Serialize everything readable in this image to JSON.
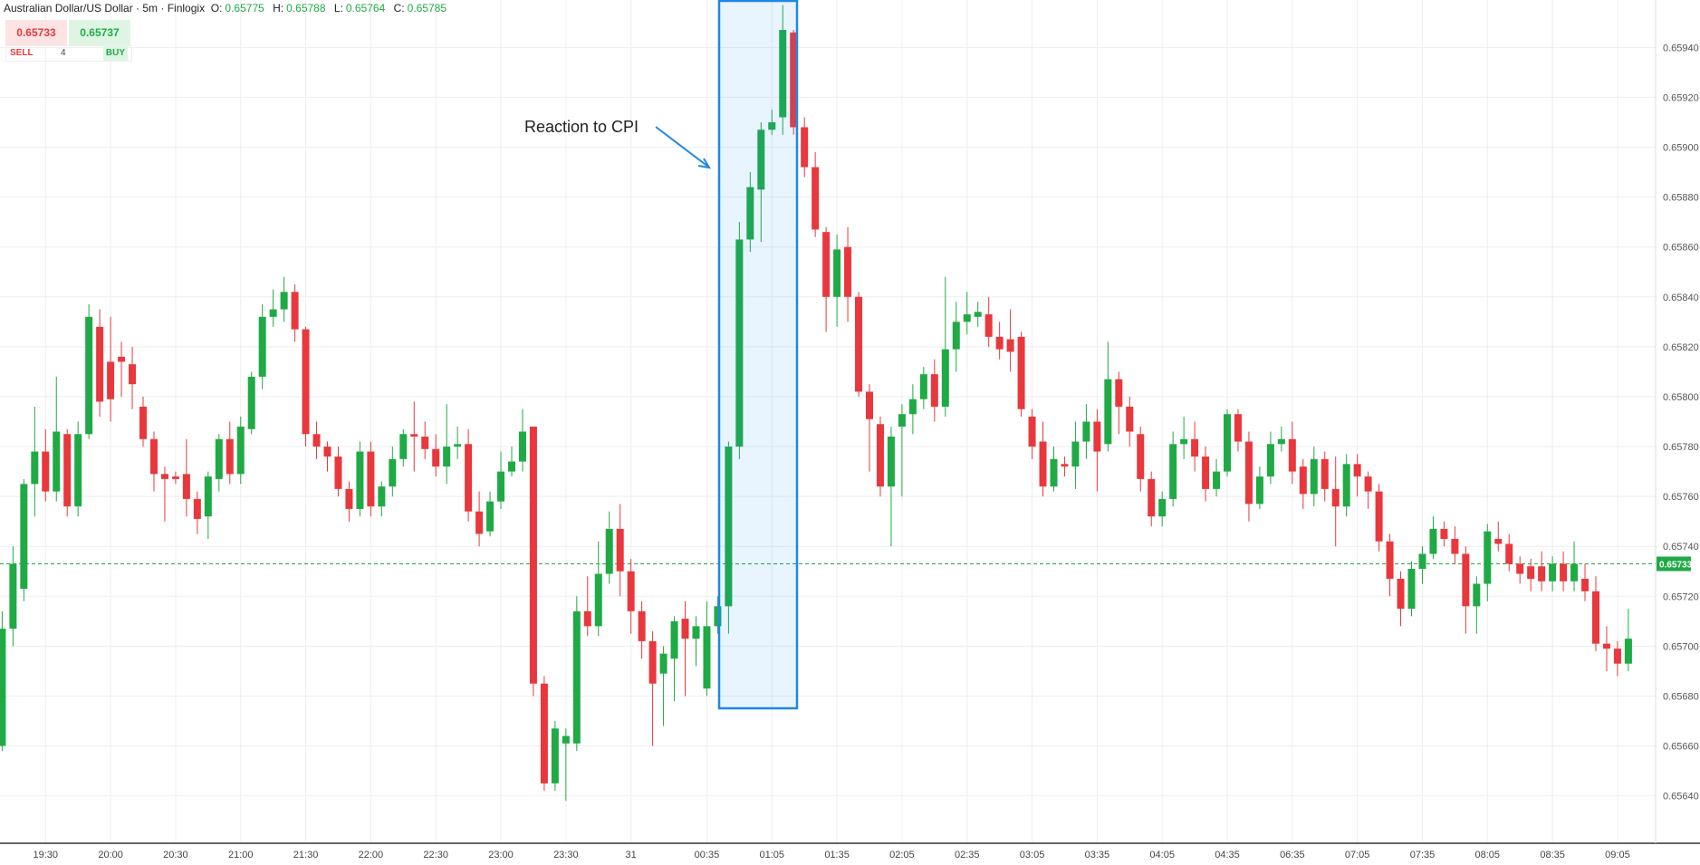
{
  "header": {
    "symbol": "Australian Dollar/US Dollar · 5m · Finlogix",
    "o_label": "O:",
    "o": "0.65775",
    "h_label": "H:",
    "h": "0.65788",
    "l_label": "L:",
    "l": "0.65764",
    "c_label": "C:",
    "c": "0.65785"
  },
  "trade": {
    "sell_price": "0.65733",
    "buy_price": "0.65737",
    "sell": "SELL",
    "quantity": "4",
    "buy": "BUY"
  },
  "chart_data": {
    "type": "candlestick",
    "annotation": "Reaction to CPI",
    "up_color": "#1faa45",
    "down_color": "#e8383d",
    "grid": true,
    "last_price": 0.65733,
    "ylim": [
      0.65621,
      0.65959
    ],
    "yticks": [
      {
        "value": 0.6564,
        "label": "0.65640"
      },
      {
        "value": 0.6566,
        "label": "0.65660"
      },
      {
        "value": 0.6568,
        "label": "0.65680"
      },
      {
        "value": 0.657,
        "label": "0.65700"
      },
      {
        "value": 0.6572,
        "label": "0.65720"
      },
      {
        "value": 0.6574,
        "label": "0.65740"
      },
      {
        "value": 0.6576,
        "label": "0.65760"
      },
      {
        "value": 0.6578,
        "label": "0.65780"
      },
      {
        "value": 0.658,
        "label": "0.65800"
      },
      {
        "value": 0.6582,
        "label": "0.65820"
      },
      {
        "value": 0.6584,
        "label": "0.65840"
      },
      {
        "value": 0.6586,
        "label": "0.65860"
      },
      {
        "value": 0.6588,
        "label": "0.65880"
      },
      {
        "value": 0.659,
        "label": "0.65900"
      },
      {
        "value": 0.6592,
        "label": "0.65920"
      },
      {
        "value": 0.6594,
        "label": "0.65940"
      }
    ],
    "categories": [
      null,
      null,
      null,
      null,
      "19:30",
      null,
      null,
      null,
      null,
      null,
      "20:00",
      null,
      null,
      null,
      null,
      null,
      "20:30",
      null,
      null,
      null,
      null,
      null,
      "21:00",
      null,
      null,
      null,
      null,
      null,
      "21:30",
      null,
      null,
      null,
      null,
      null,
      "22:00",
      null,
      null,
      null,
      null,
      null,
      "22:30",
      null,
      null,
      null,
      null,
      null,
      "23:00",
      null,
      null,
      null,
      null,
      null,
      "23:30",
      null,
      null,
      null,
      null,
      null,
      "31",
      null,
      null,
      null,
      null,
      null,
      null,
      "00:35",
      null,
      null,
      null,
      null,
      null,
      "01:05",
      null,
      null,
      null,
      null,
      null,
      "01:35",
      null,
      null,
      null,
      null,
      null,
      "02:05",
      null,
      null,
      null,
      null,
      null,
      "02:35",
      null,
      null,
      null,
      null,
      null,
      "03:05",
      null,
      null,
      null,
      null,
      null,
      "03:35",
      null,
      null,
      null,
      null,
      null,
      "04:05",
      null,
      null,
      null,
      null,
      null,
      "04:35",
      null,
      null,
      null,
      null,
      null,
      "06:35",
      null,
      null,
      null,
      null,
      null,
      "07:05",
      null,
      null,
      null,
      null,
      null,
      "07:35",
      null,
      null,
      null,
      null,
      null,
      "08:05",
      null,
      null,
      null,
      null,
      null,
      "08:35",
      null,
      null,
      null,
      null,
      null,
      "09:05",
      null
    ],
    "open": [
      0.6566,
      0.65707,
      0.65723,
      0.65765,
      0.65778,
      0.65762,
      0.65785,
      0.65756,
      0.65785,
      0.65828,
      0.65814,
      0.65816,
      0.65813,
      0.65796,
      0.65783,
      0.65769,
      0.65768,
      0.65769,
      0.65759,
      0.65752,
      0.65767,
      0.65783,
      0.65769,
      0.65787,
      0.65808,
      0.65832,
      0.65835,
      0.65842,
      0.65827,
      0.65785,
      0.6578,
      0.65776,
      0.65763,
      0.65755,
      0.65778,
      0.65756,
      0.65764,
      0.65775,
      0.65785,
      0.65784,
      0.65779,
      0.65772,
      0.6578,
      0.65781,
      0.65754,
      0.65746,
      0.65758,
      0.6577,
      0.65774,
      0.65788,
      0.65685,
      0.65645,
      0.65661,
      0.65661,
      0.65714,
      0.65708,
      0.65729,
      0.65747,
      0.6573,
      0.65714,
      0.65702,
      0.65689,
      0.65695,
      0.65711,
      0.65703,
      0.65683,
      0.65708,
      0.65716,
      0.6578,
      0.65863,
      0.65883,
      0.65907,
      0.65912,
      0.65946,
      0.65908,
      0.65892,
      0.65866,
      0.6584,
      0.6586,
      0.6584,
      0.65802,
      0.65789,
      0.65764,
      0.65788,
      0.65793,
      0.65799,
      0.65809,
      0.65796,
      0.65819,
      0.6583,
      0.65832,
      0.65833,
      0.65824,
      0.65823,
      0.65824,
      0.65792,
      0.65782,
      0.65764,
      0.65773,
      0.65772,
      0.65782,
      0.6579,
      0.65781,
      0.65807,
      0.65796,
      0.65785,
      0.65767,
      0.65752,
      0.65759,
      0.65781,
      0.65783,
      0.65776,
      0.65763,
      0.6577,
      0.65793,
      0.65782,
      0.65757,
      0.65768,
      0.65781,
      0.65783,
      0.65772,
      0.65761,
      0.65775,
      0.65763,
      0.65756,
      0.65773,
      0.65768,
      0.65762,
      0.65742,
      0.65727,
      0.65715,
      0.65731,
      0.65737,
      0.65747,
      0.65743,
      0.65737,
      0.65716,
      0.65725,
      0.65743,
      0.65741,
      0.65733,
      0.65732,
      0.65732,
      0.65726,
      0.65733,
      0.65726,
      0.65727,
      0.65722,
      0.65701,
      0.65699,
      0.65693
    ],
    "high": [
      0.65714,
      0.6574,
      0.65767,
      0.65796,
      0.65787,
      0.65808,
      0.65787,
      0.6579,
      0.65837,
      0.65835,
      0.65832,
      0.65822,
      0.6582,
      0.658,
      0.65786,
      0.65772,
      0.6577,
      0.65783,
      0.65762,
      0.6577,
      0.65785,
      0.6579,
      0.65792,
      0.6581,
      0.65837,
      0.65843,
      0.65848,
      0.65845,
      0.65828,
      0.6579,
      0.65782,
      0.6578,
      0.65766,
      0.65782,
      0.65782,
      0.65766,
      0.6578,
      0.65787,
      0.65798,
      0.6579,
      0.65785,
      0.65797,
      0.65788,
      0.65787,
      0.65762,
      0.65762,
      0.65778,
      0.6578,
      0.65795,
      0.65788,
      0.65688,
      0.6567,
      0.65667,
      0.6572,
      0.65728,
      0.65742,
      0.65754,
      0.65757,
      0.65735,
      0.65718,
      0.65706,
      0.657,
      0.65712,
      0.65718,
      0.65712,
      0.65718,
      0.6572,
      0.65782,
      0.6587,
      0.6589,
      0.6591,
      0.65915,
      0.65957,
      0.65947,
      0.65912,
      0.65898,
      0.65868,
      0.65865,
      0.65868,
      0.65842,
      0.65805,
      0.65792,
      0.65788,
      0.65797,
      0.65805,
      0.65812,
      0.65815,
      0.65848,
      0.65838,
      0.65842,
      0.65838,
      0.6584,
      0.6583,
      0.65835,
      0.65826,
      0.65795,
      0.6579,
      0.6578,
      0.65776,
      0.6579,
      0.65797,
      0.65795,
      0.65822,
      0.6581,
      0.658,
      0.65788,
      0.6577,
      0.65762,
      0.65786,
      0.65792,
      0.6579,
      0.6578,
      0.65775,
      0.65795,
      0.65795,
      0.65786,
      0.65772,
      0.65786,
      0.65788,
      0.6579,
      0.65775,
      0.6578,
      0.65778,
      0.65776,
      0.65777,
      0.65777,
      0.6577,
      0.65765,
      0.65745,
      0.6573,
      0.65734,
      0.6574,
      0.65752,
      0.6575,
      0.65748,
      0.6574,
      0.65728,
      0.65749,
      0.6575,
      0.65745,
      0.65736,
      0.65735,
      0.65738,
      0.65736,
      0.65738,
      0.65742,
      0.65733,
      0.65728,
      0.65708,
      0.65702,
      0.65715
    ],
    "low": [
      0.65658,
      0.657,
      0.65718,
      0.65752,
      0.65758,
      0.65758,
      0.65752,
      0.65752,
      0.65783,
      0.65792,
      0.6579,
      0.658,
      0.65795,
      0.6578,
      0.65762,
      0.6575,
      0.65765,
      0.65752,
      0.65745,
      0.65743,
      0.65762,
      0.65765,
      0.65765,
      0.65785,
      0.65803,
      0.65828,
      0.6583,
      0.65822,
      0.6578,
      0.65775,
      0.6577,
      0.6576,
      0.6575,
      0.65752,
      0.65752,
      0.65752,
      0.6576,
      0.65772,
      0.6577,
      0.65775,
      0.65768,
      0.65765,
      0.65775,
      0.6575,
      0.6574,
      0.65744,
      0.65755,
      0.65768,
      0.6577,
      0.6568,
      0.65642,
      0.65642,
      0.65638,
      0.65658,
      0.65704,
      0.65704,
      0.65725,
      0.6572,
      0.65705,
      0.65695,
      0.6566,
      0.65668,
      0.65678,
      0.6568,
      0.65692,
      0.6568,
      0.65705,
      0.65705,
      0.65775,
      0.65858,
      0.65862,
      0.65905,
      0.65905,
      0.65905,
      0.65888,
      0.65864,
      0.65826,
      0.65828,
      0.6583,
      0.658,
      0.6577,
      0.6576,
      0.6574,
      0.6576,
      0.65785,
      0.65795,
      0.6579,
      0.65792,
      0.6581,
      0.65825,
      0.65828,
      0.6582,
      0.65815,
      0.6581,
      0.65792,
      0.65775,
      0.6576,
      0.65762,
      0.65768,
      0.65763,
      0.65775,
      0.65762,
      0.65778,
      0.65785,
      0.6578,
      0.65762,
      0.65748,
      0.65748,
      0.65756,
      0.65775,
      0.6577,
      0.65758,
      0.6576,
      0.65768,
      0.65778,
      0.6575,
      0.65755,
      0.65765,
      0.65778,
      0.65765,
      0.65755,
      0.65756,
      0.65758,
      0.6574,
      0.65752,
      0.6576,
      0.65755,
      0.65738,
      0.6572,
      0.65708,
      0.65712,
      0.65725,
      0.65735,
      0.6574,
      0.65733,
      0.65705,
      0.65705,
      0.65718,
      0.65738,
      0.6573,
      0.65725,
      0.65722,
      0.65722,
      0.65722,
      0.65722,
      0.65722,
      0.65718,
      0.65698,
      0.6569,
      0.65688,
      0.6569
    ],
    "close": [
      0.65707,
      0.65733,
      0.65765,
      0.65778,
      0.65762,
      0.65786,
      0.65756,
      0.65785,
      0.65832,
      0.65798,
      0.65799,
      0.65814,
      0.65805,
      0.65783,
      0.65769,
      0.65767,
      0.65767,
      0.65759,
      0.65751,
      0.65768,
      0.65783,
      0.65769,
      0.65788,
      0.65808,
      0.65832,
      0.65835,
      0.65842,
      0.65827,
      0.65785,
      0.6578,
      0.65776,
      0.65763,
      0.65755,
      0.65778,
      0.65756,
      0.65764,
      0.65775,
      0.65785,
      0.65784,
      0.65779,
      0.65772,
      0.6578,
      0.65781,
      0.65754,
      0.65745,
      0.65758,
      0.6577,
      0.65774,
      0.65786,
      0.65685,
      0.65645,
      0.65667,
      0.65664,
      0.65714,
      0.65708,
      0.65729,
      0.65747,
      0.6573,
      0.65714,
      0.65702,
      0.65685,
      0.65697,
      0.6571,
      0.65703,
      0.65708,
      0.65708,
      0.65716,
      0.6578,
      0.65863,
      0.65884,
      0.65907,
      0.6591,
      0.65947,
      0.65908,
      0.65892,
      0.65867,
      0.6584,
      0.65859,
      0.6584,
      0.65802,
      0.65791,
      0.65764,
      0.65784,
      0.65793,
      0.65799,
      0.65809,
      0.65796,
      0.65819,
      0.6583,
      0.65833,
      0.65834,
      0.65824,
      0.65819,
      0.65818,
      0.65795,
      0.6578,
      0.65764,
      0.65775,
      0.65772,
      0.65782,
      0.6579,
      0.65778,
      0.65807,
      0.65796,
      0.65786,
      0.65767,
      0.65752,
      0.65759,
      0.65781,
      0.65783,
      0.65776,
      0.65763,
      0.6577,
      0.65793,
      0.65782,
      0.65757,
      0.65768,
      0.65781,
      0.65783,
      0.6577,
      0.65761,
      0.65775,
      0.65763,
      0.65756,
      0.65773,
      0.65768,
      0.65762,
      0.65742,
      0.65727,
      0.65715,
      0.65731,
      0.65737,
      0.65747,
      0.65743,
      0.65737,
      0.65716,
      0.65725,
      0.65746,
      0.65741,
      0.65733,
      0.65729,
      0.65727,
      0.65726,
      0.65733,
      0.65726,
      0.65733,
      0.65722,
      0.65701,
      0.65699,
      0.65693,
      0.65703
    ]
  }
}
